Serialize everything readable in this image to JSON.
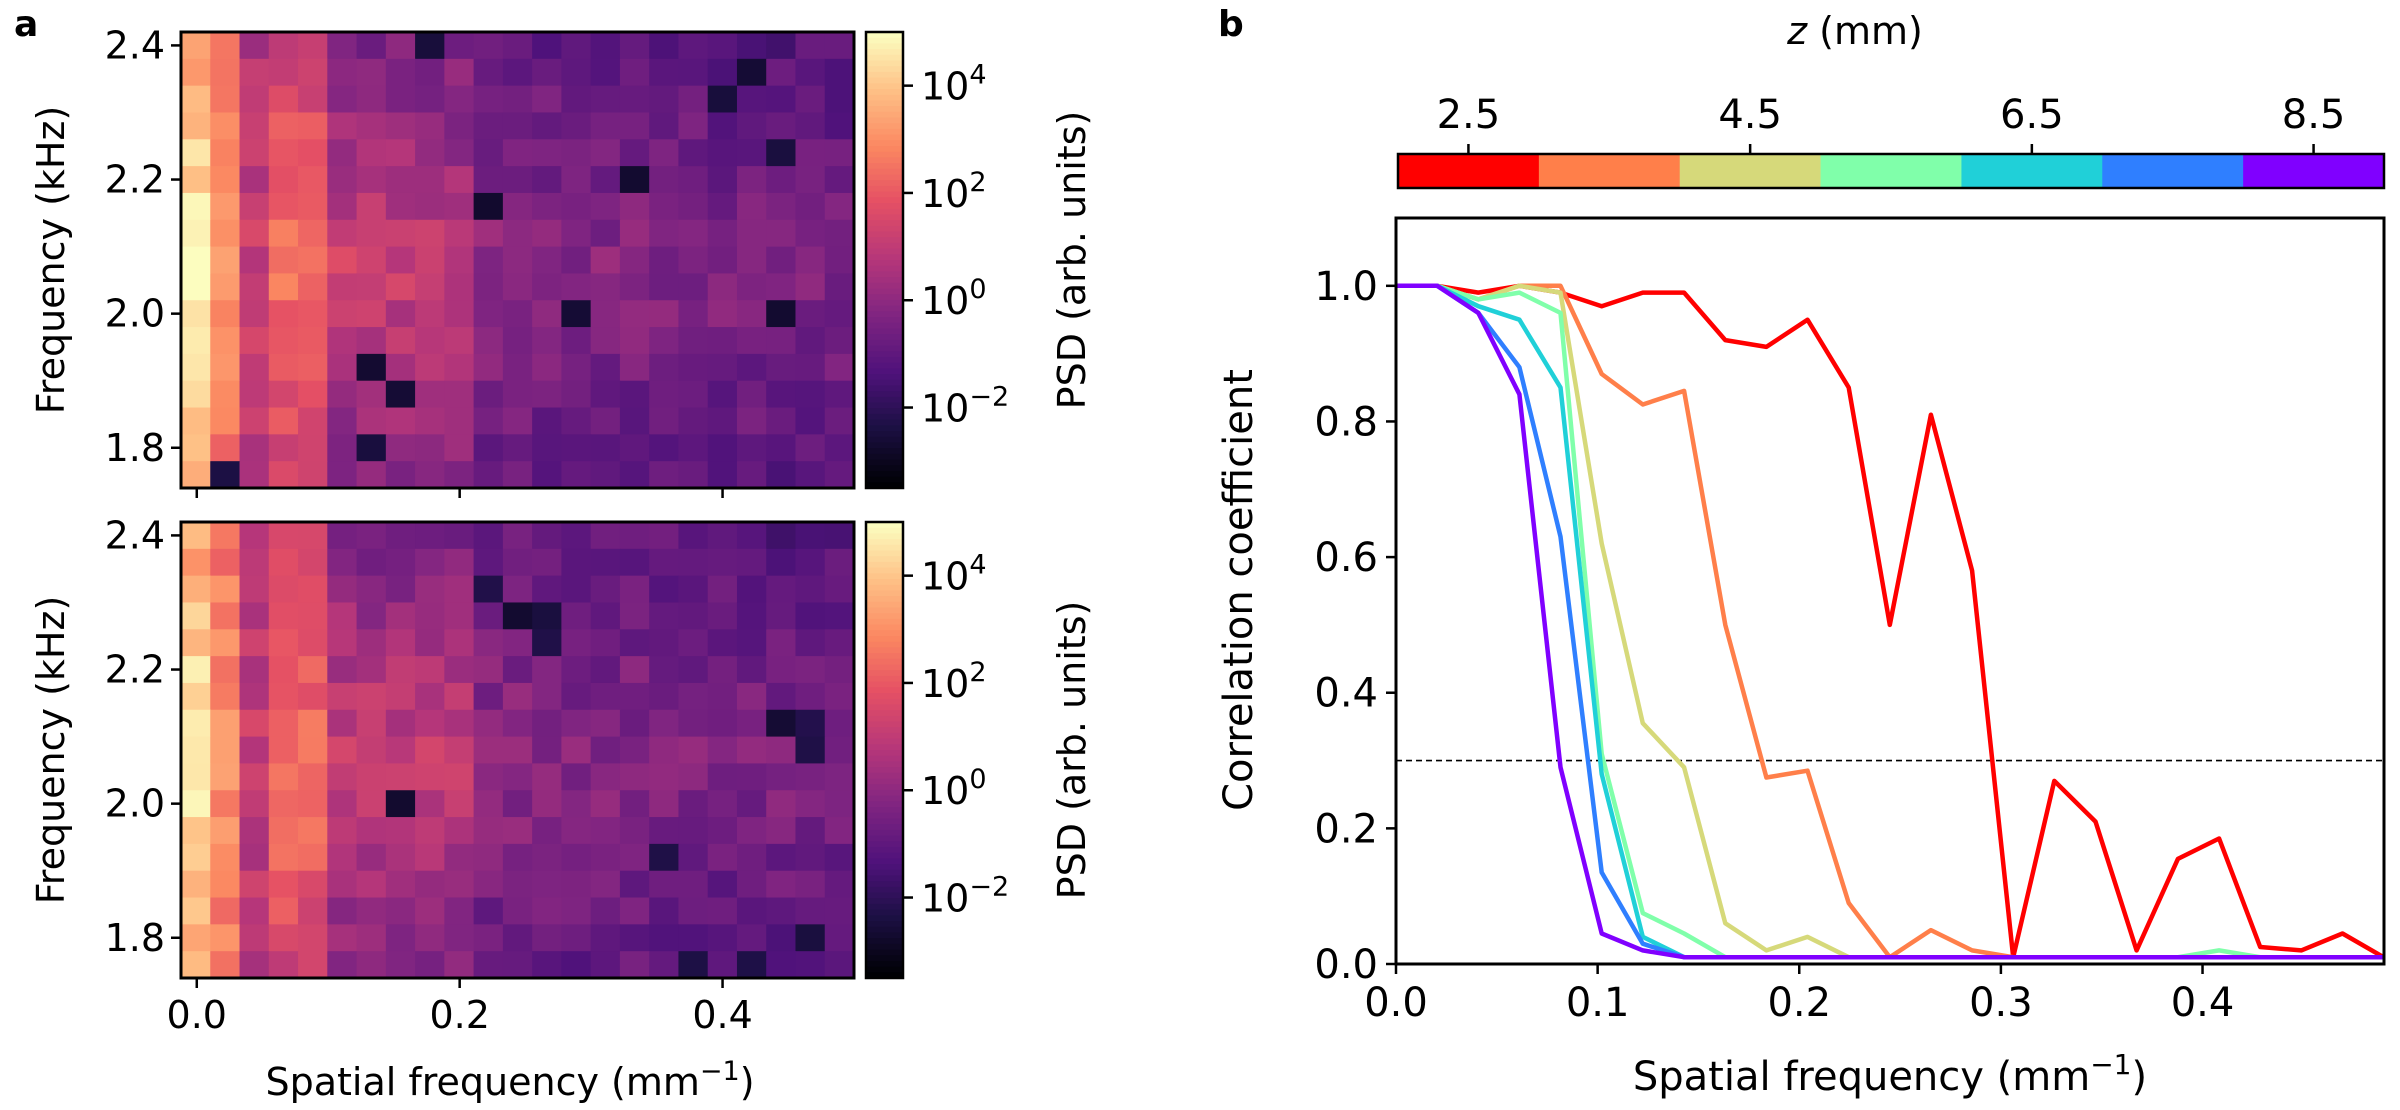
{
  "figure": {
    "panel_a_label": "a",
    "panel_b_label": "b"
  },
  "chart_data": [
    {
      "type": "heatmap",
      "panel": "a",
      "subplot": "top",
      "xlabel": "",
      "ylabel": "Frequency (kHz)",
      "xlim": [
        -0.012,
        0.5
      ],
      "ylim": [
        1.74,
        2.42
      ],
      "xticks": [
        0.0,
        0.2,
        0.4
      ],
      "yticks": [
        {
          "value": 1.8,
          "label": "1.8"
        },
        {
          "value": 2.0,
          "label": "2.0"
        },
        {
          "value": 2.2,
          "label": "2.2"
        },
        {
          "value": 2.4,
          "label": "2.4"
        }
      ],
      "grid": {
        "n_cols": 23,
        "n_rows": 17
      },
      "colorscale": "magma",
      "log10_range": [
        -3.5,
        5
      ],
      "colorbar": {
        "label": "PSD (arb. units)",
        "ticks": [
          {
            "exp": 4,
            "base": "10",
            "sup": "4"
          },
          {
            "exp": 2,
            "base": "10",
            "sup": "2"
          },
          {
            "exp": 0,
            "base": "10",
            "sup": "0"
          },
          {
            "exp": -2,
            "base": "10",
            "sup": "−2"
          }
        ]
      },
      "dark_cells": [
        [
          0,
          8
        ],
        [
          10,
          13
        ],
        [
          4,
          20
        ],
        [
          6,
          10
        ],
        [
          2,
          18
        ],
        [
          15,
          6
        ],
        [
          13,
          7
        ],
        [
          12,
          6
        ],
        [
          10,
          20
        ],
        [
          1,
          19
        ],
        [
          16,
          1
        ],
        [
          5,
          15
        ]
      ],
      "seed": 7
    },
    {
      "type": "heatmap",
      "panel": "a",
      "subplot": "bottom",
      "xlabel": "Spatial frequency (mm",
      "xlabel_sup": "−1",
      "xlabel_end": ")",
      "ylabel": "Frequency (kHz)",
      "xlim": [
        -0.012,
        0.5
      ],
      "ylim": [
        1.74,
        2.42
      ],
      "xticks": [
        {
          "value": 0.0,
          "label": "0.0"
        },
        {
          "value": 0.2,
          "label": "0.2"
        },
        {
          "value": 0.4,
          "label": "0.4"
        }
      ],
      "yticks": [
        {
          "value": 1.8,
          "label": "1.8"
        },
        {
          "value": 2.0,
          "label": "2.0"
        },
        {
          "value": 2.2,
          "label": "2.2"
        },
        {
          "value": 2.4,
          "label": "2.4"
        }
      ],
      "grid": {
        "n_cols": 23,
        "n_rows": 17
      },
      "colorscale": "magma",
      "log10_range": [
        -3.5,
        5
      ],
      "colorbar": {
        "label": "PSD (arb. units)",
        "ticks": [
          {
            "exp": 4,
            "base": "10",
            "sup": "4"
          },
          {
            "exp": 2,
            "base": "10",
            "sup": "2"
          },
          {
            "exp": 0,
            "base": "10",
            "sup": "0"
          },
          {
            "exp": -2,
            "base": "10",
            "sup": "−2"
          }
        ]
      },
      "dark_cells": [
        [
          3,
          11
        ],
        [
          3,
          12
        ],
        [
          2,
          10
        ],
        [
          4,
          12
        ],
        [
          7,
          20
        ],
        [
          7,
          21
        ],
        [
          8,
          21
        ],
        [
          12,
          16
        ],
        [
          15,
          21
        ],
        [
          16,
          17
        ],
        [
          16,
          19
        ],
        [
          10,
          7
        ]
      ],
      "seed": 19
    },
    {
      "type": "line",
      "panel": "b",
      "xlabel": "Spatial frequency (mm",
      "xlabel_sup": "−1",
      "xlabel_end": ")",
      "ylabel": "Correlation coefficient",
      "xlim": [
        0,
        0.49
      ],
      "ylim": [
        0,
        1.1
      ],
      "xticks": [
        {
          "value": 0.0,
          "label": "0.0"
        },
        {
          "value": 0.1,
          "label": "0.1"
        },
        {
          "value": 0.2,
          "label": "0.2"
        },
        {
          "value": 0.3,
          "label": "0.3"
        },
        {
          "value": 0.4,
          "label": "0.4"
        }
      ],
      "yticks": [
        {
          "value": 0.0,
          "label": "0.0"
        },
        {
          "value": 0.2,
          "label": "0.2"
        },
        {
          "value": 0.4,
          "label": "0.4"
        },
        {
          "value": 0.6,
          "label": "0.6"
        },
        {
          "value": 0.8,
          "label": "0.8"
        },
        {
          "value": 1.0,
          "label": "1.0"
        }
      ],
      "threshold": 0.3,
      "x": [
        0.0,
        0.0204,
        0.0408,
        0.0612,
        0.0816,
        0.102,
        0.1224,
        0.1429,
        0.1633,
        0.1837,
        0.2041,
        0.2245,
        0.2449,
        0.2653,
        0.2857,
        0.3061,
        0.3265,
        0.3469,
        0.3673,
        0.3878,
        0.4082,
        0.4286,
        0.449,
        0.4694,
        0.4898
      ],
      "series": [
        {
          "name": "2.5",
          "color": "#ff0000",
          "values": [
            1.0,
            1.0,
            0.99,
            1.0,
            0.99,
            0.97,
            0.99,
            0.99,
            0.92,
            0.91,
            0.95,
            0.85,
            0.5,
            0.81,
            0.58,
            0.01,
            0.27,
            0.21,
            0.02,
            0.155,
            0.185,
            0.025,
            0.02,
            0.045,
            0.01
          ]
        },
        {
          "name": "3.5",
          "color": "#ff7f4a",
          "values": [
            1.0,
            1.0,
            0.98,
            1.0,
            1.0,
            0.87,
            0.825,
            0.845,
            0.5,
            0.275,
            0.285,
            0.09,
            0.01,
            0.05,
            0.02,
            0.01,
            0.01,
            0.01,
            0.01,
            0.01,
            0.01,
            0.01,
            0.01,
            0.01,
            0.01
          ]
        },
        {
          "name": "4.5",
          "color": "#d6d97a",
          "values": [
            1.0,
            1.0,
            0.98,
            1.0,
            0.99,
            0.62,
            0.355,
            0.29,
            0.06,
            0.02,
            0.04,
            0.01,
            0.01,
            0.01,
            0.01,
            0.01,
            0.01,
            0.01,
            0.01,
            0.01,
            0.01,
            0.01,
            0.01,
            0.01,
            0.01
          ]
        },
        {
          "name": "5.5",
          "color": "#80ffaa",
          "values": [
            1.0,
            1.0,
            0.98,
            0.99,
            0.96,
            0.31,
            0.075,
            0.045,
            0.01,
            0.01,
            0.01,
            0.01,
            0.01,
            0.01,
            0.01,
            0.01,
            0.01,
            0.01,
            0.01,
            0.01,
            0.02,
            0.01,
            0.01,
            0.01,
            0.01
          ]
        },
        {
          "name": "6.5",
          "color": "#20d0d8",
          "values": [
            1.0,
            1.0,
            0.97,
            0.95,
            0.85,
            0.28,
            0.04,
            0.01,
            0.01,
            0.01,
            0.01,
            0.01,
            0.01,
            0.01,
            0.01,
            0.01,
            0.01,
            0.01,
            0.01,
            0.01,
            0.01,
            0.01,
            0.01,
            0.01,
            0.01
          ]
        },
        {
          "name": "7.5",
          "color": "#2f7fff",
          "values": [
            1.0,
            1.0,
            0.96,
            0.88,
            0.63,
            0.135,
            0.03,
            0.01,
            0.01,
            0.01,
            0.01,
            0.01,
            0.01,
            0.01,
            0.01,
            0.01,
            0.01,
            0.01,
            0.01,
            0.01,
            0.01,
            0.01,
            0.01,
            0.01,
            0.01
          ]
        },
        {
          "name": "8.5",
          "color": "#8000ff",
          "values": [
            1.0,
            1.0,
            0.96,
            0.84,
            0.29,
            0.045,
            0.02,
            0.01,
            0.01,
            0.01,
            0.01,
            0.01,
            0.01,
            0.01,
            0.01,
            0.01,
            0.01,
            0.01,
            0.01,
            0.01,
            0.01,
            0.01,
            0.01,
            0.01,
            0.01
          ]
        }
      ],
      "colorbar": {
        "label_italic": "z",
        "label_rest": " (mm)",
        "range": [
          2.0,
          9.0
        ],
        "ticks": [
          {
            "value": 2.5,
            "label": "2.5"
          },
          {
            "value": 4.5,
            "label": "4.5"
          },
          {
            "value": 6.5,
            "label": "6.5"
          },
          {
            "value": 8.5,
            "label": "8.5"
          }
        ],
        "colors": [
          "#ff0000",
          "#ff7f4a",
          "#d6d97a",
          "#80ffaa",
          "#20d0d8",
          "#2f7fff",
          "#8000ff"
        ]
      }
    }
  ]
}
